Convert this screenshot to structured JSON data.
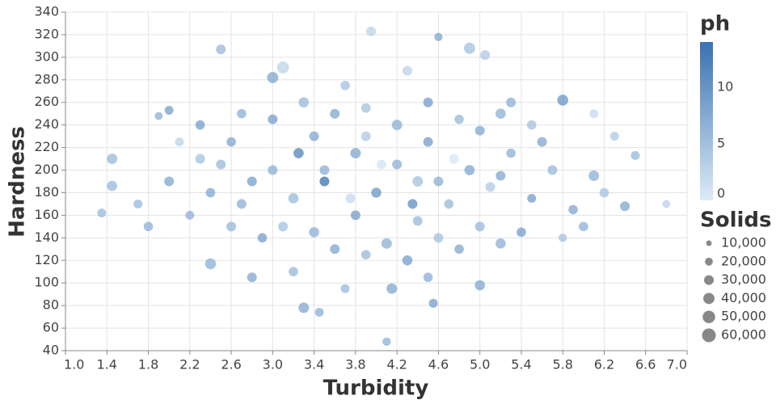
{
  "chart_data": {
    "type": "scatter",
    "x_label": "Turbidity",
    "y_label": "Hardness",
    "x": [
      4.1,
      3.3,
      3.45,
      1.45,
      1.45,
      1.35,
      6.8,
      6.5,
      3.95,
      4.6,
      4.9,
      2.5,
      5.05,
      4.55,
      4.15,
      3.7,
      3.0,
      3.1,
      3.7,
      4.3,
      5.3,
      5.8,
      6.1,
      1.9,
      2.0,
      2.3,
      2.6,
      2.8,
      3.2,
      3.5,
      3.8,
      4.0,
      4.2,
      4.4,
      4.5,
      4.7,
      4.9,
      5.1,
      5.3,
      5.5,
      5.7,
      5.9,
      6.1,
      6.2,
      2.2,
      2.4,
      2.6,
      2.9,
      3.1,
      3.4,
      3.6,
      3.9,
      4.1,
      4.3,
      4.6,
      4.8,
      5.0,
      5.2,
      5.4,
      2.4,
      2.8,
      3.2,
      5.0,
      4.5,
      2.7,
      3.0,
      3.3,
      3.6,
      3.9,
      4.2,
      4.5,
      4.8,
      5.0,
      5.2,
      5.5,
      1.7,
      1.8,
      2.0,
      2.1,
      2.3,
      6.3,
      6.0,
      5.8,
      6.4,
      3.5,
      4.05,
      3.75,
      4.35,
      3.25,
      4.75,
      3.9,
      3.4,
      4.6,
      2.5,
      5.6,
      3.0,
      3.8,
      4.4,
      5.2,
      2.7
    ],
    "y": [
      48,
      78,
      74,
      210,
      186,
      162,
      170,
      213,
      323,
      318,
      308,
      307,
      302,
      82,
      95,
      95,
      282,
      291,
      275,
      288,
      260,
      262,
      250,
      248,
      253,
      210,
      225,
      190,
      175,
      200,
      215,
      180,
      205,
      190,
      225,
      170,
      200,
      185,
      215,
      175,
      200,
      165,
      195,
      180,
      160,
      180,
      150,
      140,
      150,
      145,
      130,
      125,
      135,
      120,
      140,
      130,
      150,
      135,
      145,
      117,
      105,
      110,
      98,
      105,
      250,
      245,
      260,
      250,
      255,
      240,
      260,
      245,
      235,
      250,
      240,
      170,
      150,
      190,
      225,
      240,
      230,
      150,
      140,
      168,
      190,
      205,
      175,
      170,
      215,
      210,
      230,
      230,
      190,
      205,
      225,
      200,
      160,
      155,
      195,
      170
    ],
    "size": [
      22000,
      35000,
      25000,
      35000,
      33000,
      25000,
      20000,
      25000,
      30000,
      22000,
      40000,
      30000,
      30000,
      25000,
      35000,
      25000,
      40000,
      45000,
      28000,
      30000,
      30000,
      38000,
      25000,
      20000,
      25000,
      30000,
      28000,
      30000,
      33000,
      30000,
      35000,
      32000,
      30000,
      35000,
      30000,
      28000,
      33000,
      30000,
      28000,
      25000,
      30000,
      28000,
      35000,
      28000,
      25000,
      28000,
      30000,
      28000,
      30000,
      33000,
      30000,
      28000,
      35000,
      32000,
      30000,
      28000,
      30000,
      33000,
      28000,
      38000,
      30000,
      28000,
      33000,
      28000,
      28000,
      30000,
      33000,
      30000,
      28000,
      35000,
      30000,
      28000,
      30000,
      33000,
      28000,
      25000,
      28000,
      30000,
      25000,
      28000,
      25000,
      28000,
      22000,
      30000,
      30000,
      28000,
      30000,
      30000,
      33000,
      30000,
      30000,
      30000,
      30000,
      30000,
      30000,
      30000,
      30000,
      30000,
      30000,
      30000
    ],
    "ph": [
      7,
      8,
      7,
      6,
      6,
      6,
      3,
      6,
      3,
      8,
      5,
      6,
      4,
      9,
      8,
      6,
      8,
      3,
      5,
      3,
      7,
      10,
      2,
      7,
      9,
      5,
      8,
      9,
      6,
      7,
      8,
      10,
      7,
      5,
      9,
      6,
      8,
      4,
      7,
      9,
      6,
      8,
      7,
      5,
      7,
      8,
      6,
      9,
      5,
      7,
      8,
      6,
      7,
      9,
      5,
      8,
      6,
      7,
      9,
      7,
      8,
      6,
      8,
      7,
      7,
      9,
      6,
      8,
      5,
      7,
      9,
      6,
      8,
      7,
      5,
      6,
      7,
      8,
      3,
      9,
      4,
      7,
      5,
      8,
      14,
      1,
      2,
      11,
      12,
      0.5,
      4,
      8,
      7,
      6,
      8,
      7,
      9,
      6,
      8,
      7
    ],
    "xlim": [
      1.0,
      7.0
    ],
    "ylim": [
      40,
      340
    ],
    "xticks": [
      {
        "value": 1.0,
        "label": "1.0"
      },
      {
        "value": 1.4,
        "label": "1.4"
      },
      {
        "value": 1.8,
        "label": "1.8"
      },
      {
        "value": 2.2,
        "label": "2.2"
      },
      {
        "value": 2.6,
        "label": "2.6"
      },
      {
        "value": 3.0,
        "label": "3.0"
      },
      {
        "value": 3.4,
        "label": "3.4"
      },
      {
        "value": 3.8,
        "label": "3.8"
      },
      {
        "value": 4.2,
        "label": "4.2"
      },
      {
        "value": 4.6,
        "label": "4.6"
      },
      {
        "value": 5.0,
        "label": "5.0"
      },
      {
        "value": 5.4,
        "label": "5.4"
      },
      {
        "value": 5.8,
        "label": "5.8"
      },
      {
        "value": 6.2,
        "label": "6.2"
      },
      {
        "value": 6.6,
        "label": "6.6"
      },
      {
        "value": 7.0,
        "label": "7.0"
      }
    ],
    "yticks": [
      40,
      60,
      80,
      100,
      120,
      140,
      160,
      180,
      200,
      220,
      240,
      260,
      280,
      300,
      320,
      340
    ],
    "grid": true,
    "color_legend": {
      "title": "ph",
      "domain": [
        0,
        14
      ],
      "ticks": [
        0,
        5,
        10
      ],
      "colors": [
        "#dcebf7",
        "#3a72b0"
      ]
    },
    "size_legend": {
      "title": "Solids",
      "values": [
        {
          "value": 10000,
          "label": "10,000"
        },
        {
          "value": 20000,
          "label": "20,000"
        },
        {
          "value": 30000,
          "label": "30,000"
        },
        {
          "value": 40000,
          "label": "40,000"
        },
        {
          "value": 50000,
          "label": "50,000"
        },
        {
          "value": 60000,
          "label": "60,000"
        }
      ],
      "color": "#888888"
    }
  }
}
